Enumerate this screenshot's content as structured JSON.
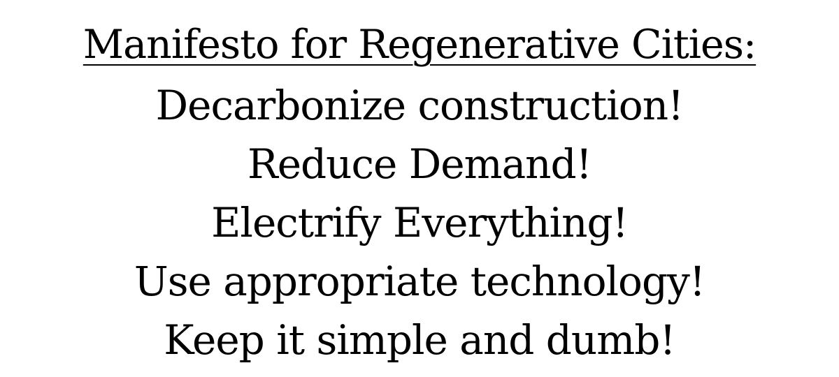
{
  "document": {
    "title": "Manifesto for Regenerative Cities:",
    "slogans": [
      "Decarbonize construction!",
      "Reduce Demand!",
      "Electrify Everything!",
      "Use appropriate technology!",
      "Keep it simple and dumb!"
    ]
  }
}
